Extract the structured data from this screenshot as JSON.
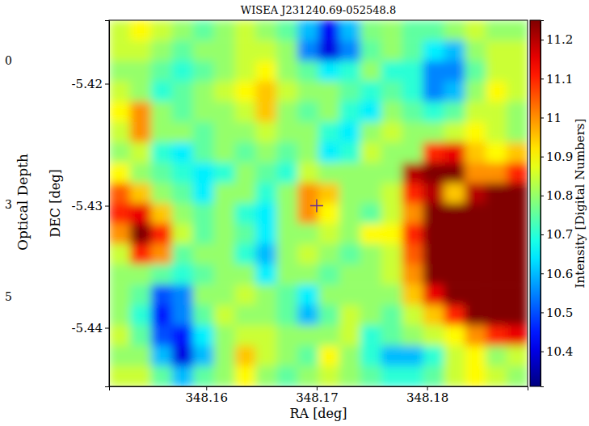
{
  "chart_data": {
    "type": "heatmap",
    "title": "WISEA J231240.69-052548.8",
    "x_label": "RA [deg]",
    "y_label": "DEC [deg]",
    "xlim": [
      348.1512,
      348.1891
    ],
    "ylim": [
      -5.4448,
      -5.4148
    ],
    "xticks": [
      348.16,
      348.17,
      348.18
    ],
    "yticks": [
      -5.44,
      -5.43,
      -5.42
    ],
    "x": [
      348.15215,
      348.15404,
      348.15594,
      348.15783,
      348.15973,
      348.16162,
      348.16352,
      348.16541,
      348.16731,
      348.1692,
      348.1711,
      348.17299,
      348.17489,
      348.17678,
      348.17868,
      348.18057,
      348.18247,
      348.18436,
      348.18626,
      348.18815
    ],
    "y": [
      -5.41563,
      -5.4173,
      -5.41897,
      -5.42063,
      -5.4223,
      -5.42397,
      -5.42563,
      -5.4273,
      -5.42897,
      -5.43063,
      -5.4323,
      -5.43397,
      -5.43563,
      -5.4373,
      -5.43897,
      -5.44063,
      -5.4423,
      -5.44397
    ],
    "z": [
      [
        10.85,
        10.9,
        10.85,
        10.8,
        10.75,
        10.8,
        10.85,
        10.8,
        10.75,
        10.6,
        10.42,
        10.6,
        10.78,
        10.8,
        10.75,
        10.75,
        10.8,
        10.85,
        10.8,
        10.8
      ],
      [
        10.85,
        10.85,
        10.8,
        10.75,
        10.8,
        10.8,
        10.85,
        10.85,
        10.8,
        10.55,
        10.4,
        10.55,
        10.75,
        10.8,
        10.75,
        10.65,
        10.6,
        10.8,
        10.85,
        10.85
      ],
      [
        10.8,
        10.8,
        10.75,
        10.7,
        10.75,
        10.8,
        10.85,
        10.9,
        10.8,
        10.75,
        10.65,
        10.7,
        10.8,
        10.7,
        10.7,
        10.55,
        10.55,
        10.75,
        10.85,
        10.85
      ],
      [
        10.85,
        10.8,
        10.7,
        10.75,
        10.8,
        10.85,
        10.9,
        10.95,
        10.85,
        10.8,
        10.8,
        10.75,
        10.7,
        10.75,
        10.7,
        10.55,
        10.6,
        10.8,
        10.9,
        10.85
      ],
      [
        10.9,
        11.0,
        10.8,
        10.75,
        10.8,
        10.8,
        10.85,
        10.95,
        10.8,
        10.75,
        10.8,
        10.7,
        10.65,
        10.8,
        10.75,
        10.7,
        10.75,
        10.85,
        10.85,
        10.8
      ],
      [
        10.85,
        11.0,
        10.8,
        10.8,
        10.75,
        10.8,
        10.8,
        10.85,
        10.8,
        10.8,
        10.7,
        10.65,
        10.8,
        10.85,
        10.8,
        10.8,
        10.85,
        10.9,
        10.85,
        10.8
      ],
      [
        10.8,
        10.85,
        10.7,
        10.65,
        10.75,
        10.8,
        10.75,
        10.8,
        10.75,
        10.8,
        10.65,
        10.7,
        10.85,
        10.8,
        10.8,
        11.1,
        11.15,
        10.95,
        10.9,
        10.95
      ],
      [
        10.9,
        10.8,
        10.75,
        10.7,
        10.65,
        10.7,
        10.8,
        10.75,
        10.7,
        10.85,
        10.8,
        10.8,
        10.8,
        10.8,
        11.2,
        11.25,
        11.25,
        11.0,
        11.0,
        11.1
      ],
      [
        11.05,
        10.95,
        10.8,
        10.75,
        10.65,
        10.8,
        10.8,
        10.7,
        10.8,
        11.0,
        10.95,
        10.8,
        10.8,
        10.85,
        11.1,
        11.2,
        10.95,
        11.2,
        11.25,
        11.25
      ],
      [
        11.1,
        11.15,
        10.95,
        10.8,
        10.75,
        10.8,
        10.7,
        10.65,
        10.8,
        11.0,
        10.9,
        10.8,
        10.75,
        10.85,
        11.0,
        11.25,
        11.25,
        11.25,
        11.25,
        11.25
      ],
      [
        11.0,
        11.25,
        11.1,
        10.85,
        10.75,
        10.8,
        10.75,
        10.65,
        10.8,
        10.8,
        10.85,
        10.8,
        10.9,
        10.9,
        11.1,
        11.25,
        11.25,
        11.25,
        11.25,
        11.25
      ],
      [
        10.85,
        11.1,
        11.0,
        10.75,
        10.8,
        10.8,
        10.7,
        10.6,
        10.8,
        10.85,
        10.8,
        10.75,
        10.8,
        10.85,
        11.05,
        11.25,
        11.25,
        11.25,
        11.25,
        11.25
      ],
      [
        10.8,
        10.8,
        10.75,
        10.7,
        10.75,
        10.8,
        10.8,
        10.65,
        10.8,
        10.8,
        10.75,
        10.8,
        10.8,
        10.85,
        11.0,
        11.25,
        11.25,
        11.25,
        11.25,
        11.25
      ],
      [
        10.8,
        10.75,
        10.5,
        10.55,
        10.8,
        10.8,
        10.85,
        10.8,
        10.75,
        10.65,
        10.8,
        10.8,
        10.8,
        10.8,
        10.95,
        11.15,
        11.25,
        11.25,
        11.25,
        11.25
      ],
      [
        10.8,
        10.7,
        10.45,
        10.55,
        10.75,
        10.85,
        10.8,
        10.8,
        10.75,
        10.6,
        10.75,
        10.85,
        10.8,
        10.75,
        10.85,
        10.95,
        11.1,
        11.25,
        11.25,
        11.25
      ],
      [
        10.85,
        10.75,
        10.5,
        10.45,
        10.65,
        10.8,
        10.85,
        10.85,
        10.8,
        10.8,
        10.8,
        10.85,
        10.7,
        10.75,
        10.8,
        10.85,
        10.9,
        11.0,
        11.1,
        11.15
      ],
      [
        10.8,
        10.8,
        10.6,
        10.4,
        10.6,
        10.8,
        10.95,
        10.85,
        10.8,
        10.75,
        10.9,
        10.8,
        10.7,
        10.6,
        10.6,
        10.7,
        10.85,
        10.9,
        10.8,
        10.85
      ],
      [
        10.85,
        10.85,
        10.75,
        10.6,
        10.75,
        10.8,
        10.9,
        10.8,
        10.75,
        10.8,
        10.85,
        10.8,
        10.75,
        10.7,
        10.7,
        10.75,
        10.85,
        10.9,
        10.85,
        10.8
      ]
    ],
    "colorbar": {
      "range": [
        10.31,
        11.25
      ],
      "ticks": [
        10.4,
        10.5,
        10.6,
        10.7,
        10.8,
        10.9,
        11.0,
        11.1,
        11.2
      ],
      "label": "Intensity [Digital Numbers]"
    },
    "points": [
      {
        "x": 348.17,
        "y": -5.43
      }
    ],
    "annotations": [
      {
        "text": "Optical Depth"
      },
      {
        "text": "0"
      },
      {
        "text": "3"
      },
      {
        "text": "5"
      }
    ]
  }
}
